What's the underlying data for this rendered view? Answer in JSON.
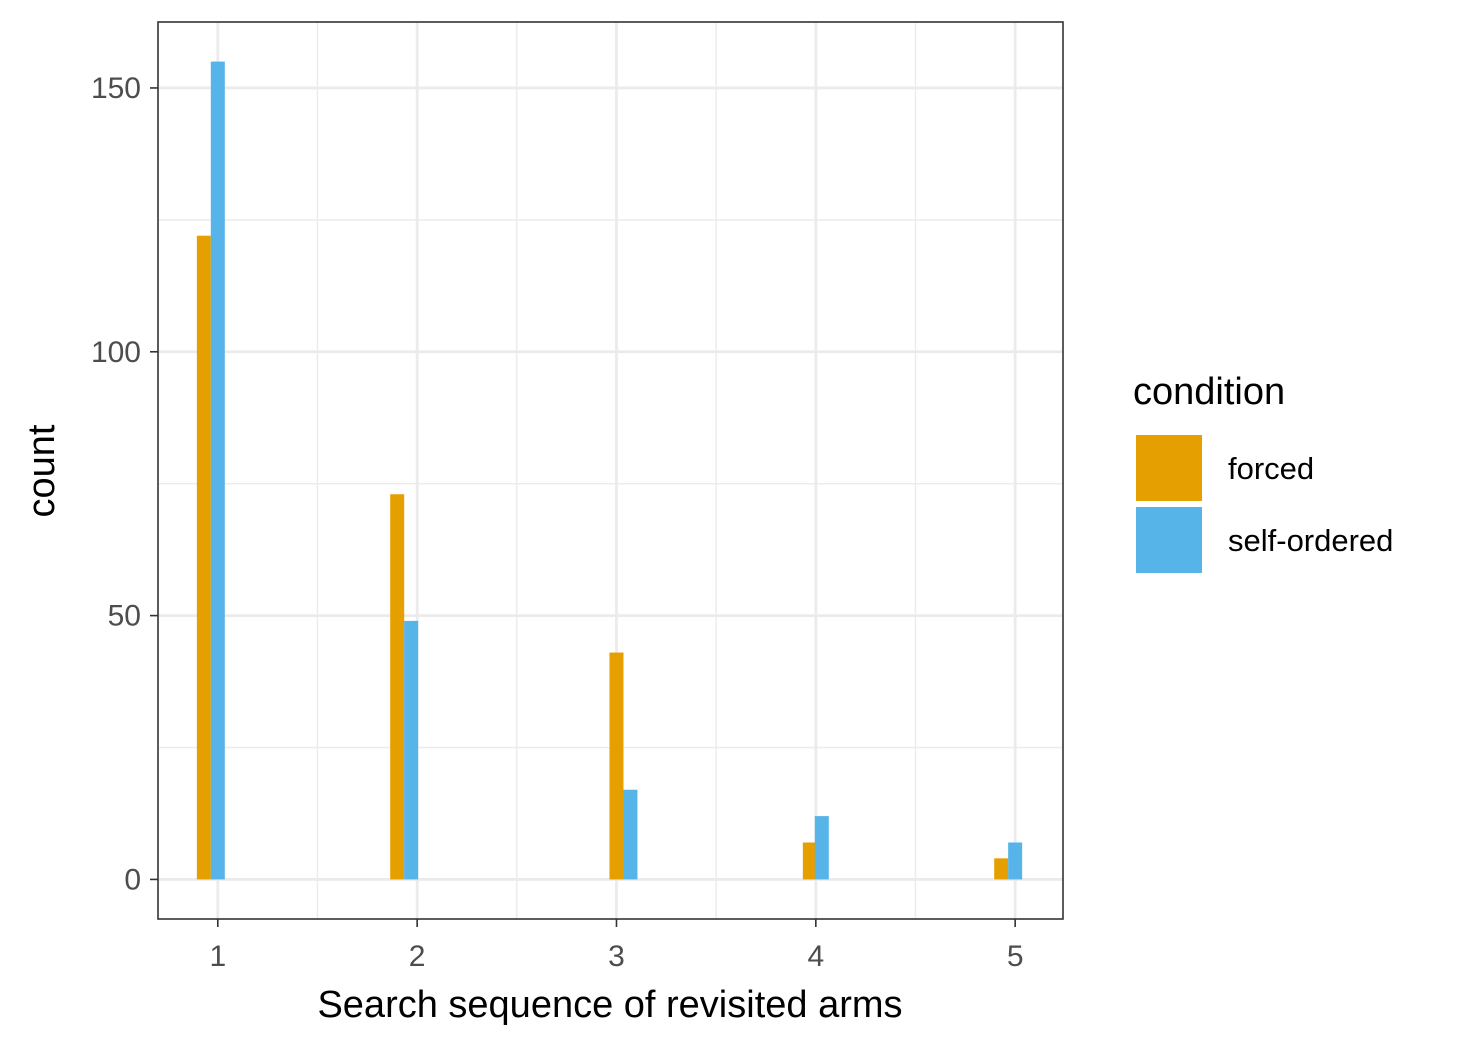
{
  "chart_data": {
    "type": "bar",
    "title": "",
    "xlabel": "Search sequence of revisited arms",
    "ylabel": "count",
    "x": [
      1,
      2,
      3,
      4,
      5
    ],
    "x_ticks": [
      "1",
      "2",
      "3",
      "4",
      "5"
    ],
    "y_ticks": [
      "0",
      "50",
      "100",
      "150"
    ],
    "xlim": [
      0.7,
      5.24
    ],
    "ylim": [
      -7.5,
      162.5
    ],
    "grid": true,
    "legend": {
      "title": "condition",
      "position": "right"
    },
    "series": [
      {
        "name": "forced",
        "color": "#E69F00",
        "points": [
          {
            "x": 0.93,
            "y": 122
          },
          {
            "x": 1.9,
            "y": 73
          },
          {
            "x": 3.0,
            "y": 43
          },
          {
            "x": 3.97,
            "y": 7
          },
          {
            "x": 4.93,
            "y": 4
          }
        ]
      },
      {
        "name": "self-ordered",
        "color": "#56B4E9",
        "points": [
          {
            "x": 1.0,
            "y": 155
          },
          {
            "x": 1.97,
            "y": 49
          },
          {
            "x": 3.07,
            "y": 17
          },
          {
            "x": 4.03,
            "y": 12
          },
          {
            "x": 5.0,
            "y": 7
          }
        ]
      }
    ]
  }
}
